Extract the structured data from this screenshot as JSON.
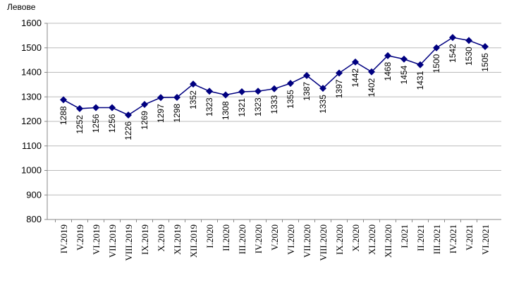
{
  "chart_data": {
    "type": "line",
    "y_axis_label": "Левове",
    "categories": [
      "IV.2019",
      "V.2019",
      "VI.2019",
      "VII.2019",
      "VIII.2019",
      "IX.2019",
      "X.2019",
      "XI.2019",
      "XII.2019",
      "I.2020",
      "II.2020",
      "III.2020",
      "IV.2020",
      "V.2020",
      "VI.2020",
      "VII.2020",
      "VIII.2020",
      "IX.2020",
      "X.2020",
      "XI.2020",
      "XII.2020",
      "I.2021",
      "II.2021",
      "III.2021",
      "IV.2021",
      "V.2021",
      "VI.2021"
    ],
    "values": [
      1288,
      1252,
      1256,
      1256,
      1226,
      1269,
      1297,
      1298,
      1352,
      1323,
      1308,
      1321,
      1323,
      1333,
      1355,
      1387,
      1335,
      1397,
      1442,
      1402,
      1468,
      1454,
      1431,
      1500,
      1542,
      1530,
      1505
    ],
    "color": "#000080",
    "ylim": [
      800,
      1600
    ],
    "yticks": [
      800,
      900,
      1000,
      1100,
      1200,
      1300,
      1400,
      1500,
      1600
    ],
    "grid": true
  }
}
